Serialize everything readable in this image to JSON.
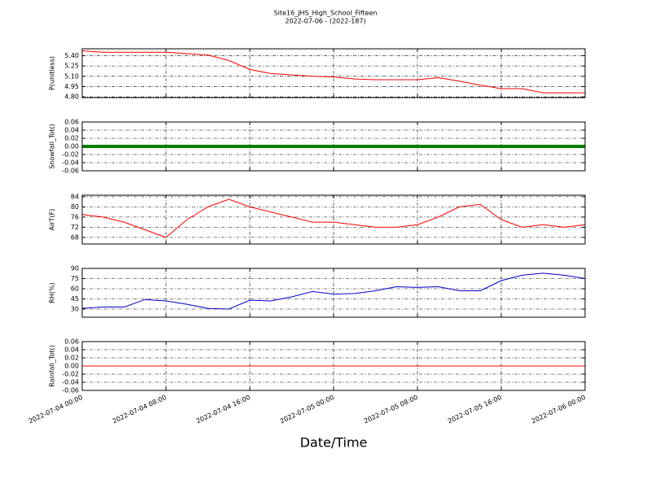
{
  "title": "Site16_JHS_High_School_Fifteen",
  "subtitle": "2022-07-06 - (2022-187)",
  "xlabel": "Date/Time",
  "xlim": [
    "2022-07-04 00:00",
    "2022-07-06 00:00"
  ],
  "xticks": [
    "2022-07-04 00:00",
    "2022-07-04 08:00",
    "2022-07-04 16:00",
    "2022-07-05 00:00",
    "2022-07-05 08:00",
    "2022-07-05 16:00",
    "2022-07-06 00:00"
  ],
  "x": [
    "2022-07-04 00:00",
    "2022-07-04 02:00",
    "2022-07-04 04:00",
    "2022-07-04 06:00",
    "2022-07-04 08:00",
    "2022-07-04 10:00",
    "2022-07-04 12:00",
    "2022-07-04 14:00",
    "2022-07-04 16:00",
    "2022-07-04 18:00",
    "2022-07-04 20:00",
    "2022-07-04 22:00",
    "2022-07-05 00:00",
    "2022-07-05 02:00",
    "2022-07-05 04:00",
    "2022-07-05 06:00",
    "2022-07-05 08:00",
    "2022-07-05 10:00",
    "2022-07-05 12:00",
    "2022-07-05 14:00",
    "2022-07-05 16:00",
    "2022-07-05 18:00",
    "2022-07-05 20:00",
    "2022-07-05 22:00",
    "2022-07-06 00:00"
  ],
  "chart_data": [
    {
      "type": "line",
      "ylabel": "P(unitless)",
      "ylim": [
        4.79,
        5.5
      ],
      "grid": true,
      "yticks": [
        {
          "value": 4.8,
          "label": "4.80"
        },
        {
          "value": 4.95,
          "label": "4.95"
        },
        {
          "value": 5.1,
          "label": "5.10"
        },
        {
          "value": 5.25,
          "label": "5.25"
        },
        {
          "value": 5.4,
          "label": "5.40"
        }
      ],
      "series": [
        {
          "name": "P",
          "color": "#ff0000",
          "values": [
            5.47,
            5.45,
            5.45,
            5.45,
            5.45,
            5.43,
            5.41,
            5.33,
            5.2,
            5.14,
            5.12,
            5.1,
            5.09,
            5.06,
            5.05,
            5.05,
            5.05,
            5.08,
            5.03,
            4.97,
            4.92,
            4.92,
            4.86,
            4.86,
            4.86
          ]
        }
      ]
    },
    {
      "type": "line",
      "ylabel": "Snowfall_Tot()",
      "ylim": [
        -0.06,
        0.06
      ],
      "grid": true,
      "yticks": [
        -0.06,
        -0.04,
        -0.02,
        {
          "value": 0,
          "label": "0.00"
        },
        0.02,
        0.04,
        0.06
      ],
      "series": [
        {
          "name": "Snowfall_Tot",
          "color": "#008000",
          "values": [
            0,
            0,
            0,
            0,
            0,
            0,
            0,
            0,
            0,
            0,
            0,
            0,
            0,
            0,
            0,
            0,
            0,
            0,
            0,
            0,
            0,
            0,
            0,
            0,
            0
          ]
        }
      ]
    },
    {
      "type": "line",
      "ylabel": "AirT(F)",
      "ylim": [
        65.4,
        84.6
      ],
      "grid": true,
      "yticks": [
        68,
        72,
        76,
        80,
        84
      ],
      "series": [
        {
          "name": "AirT",
          "color": "#ff0000",
          "values": [
            77,
            76,
            74,
            71,
            68,
            75,
            80,
            83,
            80,
            78,
            76,
            74,
            74,
            73,
            72,
            72,
            73,
            76,
            80,
            81,
            75,
            72,
            73,
            72,
            73
          ]
        }
      ]
    },
    {
      "type": "line",
      "ylabel": "RH(%)",
      "ylim": [
        18,
        90
      ],
      "grid": true,
      "yticks": [
        30,
        45,
        60,
        75,
        90
      ],
      "series": [
        {
          "name": "RH",
          "color": "#0000cc",
          "values": [
            31,
            33,
            33,
            44,
            42,
            37,
            31,
            30,
            43,
            42,
            48,
            56,
            52,
            53,
            57,
            63,
            62,
            63,
            57,
            57,
            72,
            80,
            83,
            80,
            75
          ]
        }
      ]
    },
    {
      "type": "line",
      "ylabel": "Rainfall_Tot()",
      "ylim": [
        -0.06,
        0.06
      ],
      "grid": true,
      "yticks": [
        -0.06,
        -0.04,
        -0.02,
        {
          "value": 0,
          "label": "0.00"
        },
        0.02,
        0.04,
        0.06
      ],
      "series": [
        {
          "name": "Rainfall_Tot",
          "color": "#ff0000",
          "values": [
            0,
            0,
            0,
            0,
            0,
            0,
            0,
            0,
            0,
            0,
            0,
            0,
            0,
            0,
            0,
            0,
            0,
            0,
            0,
            0,
            0,
            0,
            0,
            0,
            0
          ]
        }
      ]
    }
  ]
}
